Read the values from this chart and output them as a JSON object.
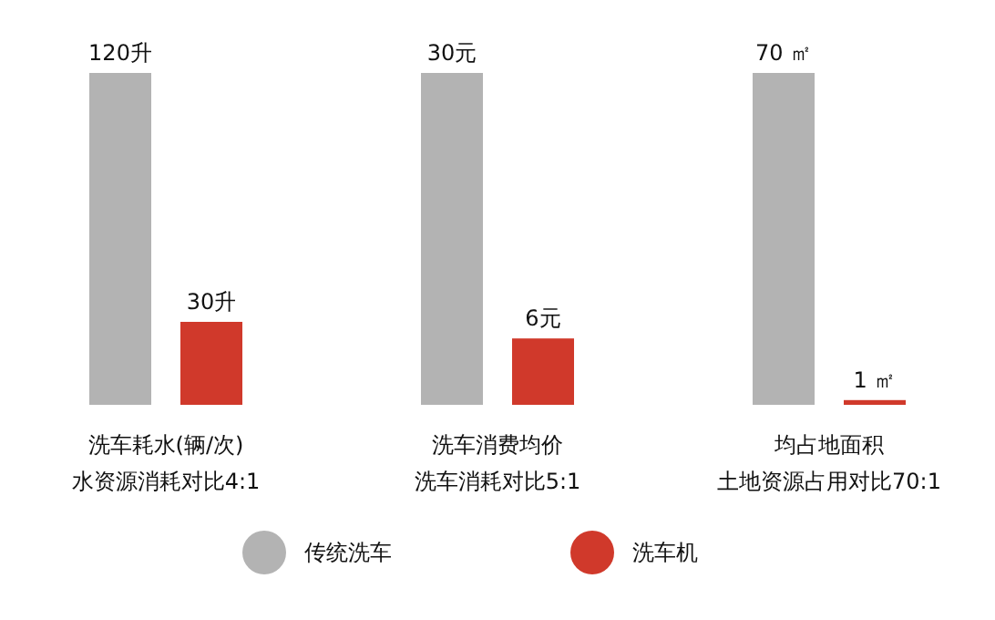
{
  "chart_data": [
    {
      "type": "bar",
      "categories": [
        null
      ],
      "xlabel": "洗车耗水(辆/次)",
      "annotations": [
        "水资源消耗对比4:1"
      ],
      "legend": "bottom",
      "series": [
        {
          "name": "传统洗车",
          "color": "#b3b3b3",
          "values": [
            120
          ],
          "value_labels": [
            "120升"
          ]
        },
        {
          "name": "洗车机",
          "color": "#d0392b",
          "values": [
            30
          ],
          "value_labels": [
            "30升"
          ]
        }
      ]
    },
    {
      "type": "bar",
      "categories": [
        null
      ],
      "xlabel": "洗车消费均价",
      "annotations": [
        "洗车消耗对比5:1"
      ],
      "series": [
        {
          "color": "#b3b3b3",
          "values": [
            30
          ],
          "value_labels": [
            "30元"
          ]
        },
        {
          "color": "#d0392b",
          "values": [
            6
          ],
          "value_labels": [
            "6元"
          ]
        }
      ]
    },
    {
      "type": "bar",
      "categories": [
        null
      ],
      "xlabel": "均占地面积",
      "annotations": [
        "土地资源占用对比70:1"
      ],
      "series": [
        {
          "color": "#b3b3b3",
          "values": [
            70
          ],
          "value_labels": [
            "70 ㎡"
          ]
        },
        {
          "color": "#d0392b",
          "values": [
            1
          ],
          "value_labels": [
            "1 ㎡"
          ]
        }
      ]
    }
  ]
}
